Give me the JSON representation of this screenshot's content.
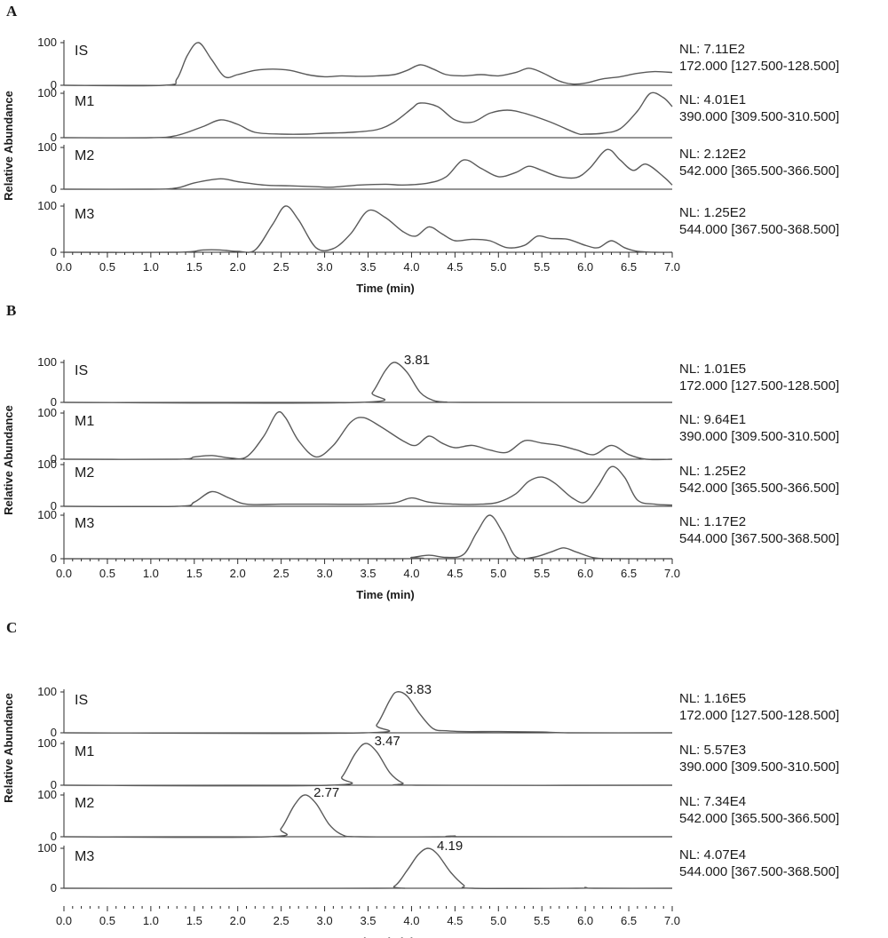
{
  "chart_data": [
    {
      "type": "line",
      "panel_label": "A",
      "xlabel": "Time (min)",
      "ylabel": "Relative Abundance",
      "xlim": [
        0,
        7
      ],
      "ylim": [
        0,
        100
      ],
      "x_ticks": [
        "0.0",
        "0.5",
        "1.0",
        "1.5",
        "2.0",
        "2.5",
        "3.0",
        "3.5",
        "4.0",
        "4.5",
        "5.0",
        "5.5",
        "6.0",
        "6.5",
        "7.0"
      ],
      "y_ticks": [
        "0",
        "100"
      ],
      "series": [
        {
          "name": "IS",
          "nl_line1": "NL: 7.11E2",
          "nl_line2": "172.000 [127.500-128.500]",
          "peak_label": "",
          "x": [
            0,
            1.15,
            1.3,
            1.42,
            1.55,
            1.7,
            1.85,
            2.0,
            2.2,
            2.4,
            2.6,
            2.8,
            3.0,
            3.2,
            3.4,
            3.6,
            3.8,
            3.95,
            4.1,
            4.25,
            4.4,
            4.6,
            4.8,
            5.0,
            5.2,
            5.35,
            5.5,
            5.7,
            5.85,
            6.0,
            6.2,
            6.4,
            6.6,
            6.8,
            7.0
          ],
          "y": [
            0,
            0,
            15,
            70,
            100,
            60,
            20,
            25,
            35,
            38,
            35,
            25,
            20,
            22,
            21,
            22,
            25,
            35,
            48,
            38,
            25,
            22,
            25,
            22,
            30,
            40,
            30,
            10,
            3,
            5,
            15,
            20,
            28,
            32,
            30
          ]
        },
        {
          "name": "M1",
          "nl_line1": "NL: 4.01E1",
          "nl_line2": "390.000 [309.500-310.500]",
          "peak_label": "",
          "x": [
            0,
            1.0,
            1.3,
            1.6,
            1.8,
            2.0,
            2.2,
            2.5,
            2.8,
            3.0,
            3.3,
            3.6,
            3.8,
            4.0,
            4.1,
            4.3,
            4.5,
            4.7,
            4.9,
            5.1,
            5.3,
            5.6,
            5.9,
            6.0,
            6.2,
            6.4,
            6.6,
            6.75,
            6.9,
            7.0
          ],
          "y": [
            0,
            0,
            5,
            25,
            40,
            30,
            12,
            8,
            8,
            10,
            12,
            18,
            35,
            65,
            78,
            70,
            40,
            35,
            55,
            62,
            55,
            35,
            10,
            8,
            10,
            20,
            60,
            100,
            90,
            70
          ]
        },
        {
          "name": "M2",
          "nl_line1": "NL: 2.12E2",
          "nl_line2": "542.000 [365.500-366.500]",
          "peak_label": "",
          "x": [
            0,
            1.0,
            1.3,
            1.5,
            1.8,
            2.0,
            2.3,
            2.6,
            2.9,
            3.1,
            3.4,
            3.7,
            3.9,
            4.2,
            4.4,
            4.6,
            4.8,
            5.0,
            5.2,
            5.35,
            5.5,
            5.7,
            5.9,
            6.05,
            6.25,
            6.4,
            6.55,
            6.7,
            6.9,
            7.0
          ],
          "y": [
            0,
            0,
            3,
            15,
            25,
            18,
            10,
            8,
            6,
            5,
            10,
            12,
            10,
            15,
            30,
            70,
            50,
            30,
            40,
            55,
            45,
            30,
            28,
            50,
            95,
            70,
            45,
            60,
            30,
            10
          ]
        },
        {
          "name": "M3",
          "nl_line1": "NL: 1.25E2",
          "nl_line2": "544.000 [367.500-368.500]",
          "peak_label": "",
          "x": [
            0,
            1.3,
            1.6,
            1.8,
            2.0,
            2.2,
            2.4,
            2.55,
            2.7,
            2.9,
            3.1,
            3.3,
            3.5,
            3.7,
            3.9,
            4.05,
            4.2,
            4.35,
            4.5,
            4.7,
            4.9,
            5.1,
            5.3,
            5.45,
            5.6,
            5.8,
            6.0,
            6.15,
            6.3,
            6.45,
            6.6,
            6.8,
            7.0
          ],
          "y": [
            0,
            0,
            5,
            5,
            2,
            5,
            60,
            100,
            70,
            10,
            8,
            40,
            90,
            75,
            45,
            35,
            55,
            40,
            25,
            28,
            25,
            10,
            15,
            35,
            30,
            28,
            15,
            10,
            25,
            10,
            2,
            0,
            0
          ]
        }
      ]
    },
    {
      "type": "line",
      "panel_label": "B",
      "xlabel": "Time (min)",
      "ylabel": "Relative Abundance",
      "xlim": [
        0,
        7
      ],
      "ylim": [
        0,
        100
      ],
      "x_ticks": [
        "0.0",
        "0.5",
        "1.0",
        "1.5",
        "2.0",
        "2.5",
        "3.0",
        "3.5",
        "4.0",
        "4.5",
        "5.0",
        "5.5",
        "6.0",
        "6.5",
        "7.0"
      ],
      "y_ticks": [
        "0",
        "100"
      ],
      "series": [
        {
          "name": "IS",
          "nl_line1": "NL: 1.01E5",
          "nl_line2": "172.000 [127.500-128.500]",
          "peak_label": "3.81",
          "peak_x": 3.81,
          "peak_y": 100,
          "x": [
            0,
            3.4,
            3.55,
            3.7,
            3.81,
            3.95,
            4.1,
            4.25,
            4.4,
            4.6,
            7.0
          ],
          "y": [
            0,
            0,
            25,
            80,
            100,
            75,
            25,
            5,
            1,
            0,
            0
          ]
        },
        {
          "name": "M1",
          "nl_line1": "NL: 9.64E1",
          "nl_line2": "390.000 [309.500-310.500]",
          "peak_label": "",
          "x": [
            0,
            1.3,
            1.5,
            1.7,
            1.9,
            2.1,
            2.3,
            2.45,
            2.55,
            2.7,
            2.9,
            3.1,
            3.3,
            3.45,
            3.65,
            3.9,
            4.05,
            4.2,
            4.35,
            4.5,
            4.7,
            4.9,
            5.1,
            5.3,
            5.5,
            5.7,
            5.9,
            6.1,
            6.3,
            6.5,
            6.7,
            7.0
          ],
          "y": [
            0,
            0,
            5,
            8,
            3,
            5,
            50,
            100,
            90,
            40,
            5,
            30,
            80,
            90,
            70,
            40,
            30,
            50,
            35,
            25,
            30,
            20,
            15,
            40,
            35,
            30,
            20,
            10,
            30,
            10,
            0,
            0
          ]
        },
        {
          "name": "M2",
          "nl_line1": "NL: 1.25E2",
          "nl_line2": "542.000 [365.500-366.500]",
          "peak_label": "",
          "x": [
            0,
            1.3,
            1.5,
            1.7,
            1.9,
            2.1,
            2.5,
            3.0,
            3.5,
            3.8,
            4.0,
            4.2,
            4.5,
            4.8,
            5.0,
            5.2,
            5.35,
            5.5,
            5.65,
            5.85,
            6.0,
            6.15,
            6.3,
            6.45,
            6.6,
            6.8,
            7.0
          ],
          "y": [
            0,
            0,
            10,
            35,
            20,
            5,
            5,
            5,
            5,
            8,
            20,
            10,
            5,
            5,
            10,
            30,
            60,
            70,
            55,
            20,
            10,
            50,
            95,
            70,
            15,
            5,
            3
          ]
        },
        {
          "name": "M3",
          "nl_line1": "NL: 1.17E2",
          "nl_line2": "544.000 [367.500-368.500]",
          "peak_label": "",
          "x": [
            0,
            3.8,
            4.0,
            4.2,
            4.4,
            4.6,
            4.75,
            4.9,
            5.05,
            5.2,
            5.4,
            5.6,
            5.75,
            5.9,
            6.1,
            6.3,
            7.0
          ],
          "y": [
            0,
            0,
            3,
            8,
            3,
            10,
            60,
            100,
            60,
            5,
            3,
            15,
            25,
            15,
            2,
            0,
            0
          ]
        }
      ]
    },
    {
      "type": "line",
      "panel_label": "C",
      "xlabel": "Time (min)",
      "ylabel": "Relative Abundance",
      "xlim": [
        0,
        7
      ],
      "ylim": [
        0,
        100
      ],
      "x_ticks": [
        "0.0",
        "0.5",
        "1.0",
        "1.5",
        "2.0",
        "2.5",
        "3.0",
        "3.5",
        "4.0",
        "4.5",
        "5.0",
        "5.5",
        "6.0",
        "6.5",
        "7.0"
      ],
      "y_ticks": [
        "0",
        "100"
      ],
      "series": [
        {
          "name": "IS",
          "nl_line1": "NL: 1.16E5",
          "nl_line2": "172.000 [127.500-128.500]",
          "peak_label": "3.83",
          "peak_x": 3.83,
          "peak_y": 100,
          "x": [
            0,
            3.45,
            3.6,
            3.75,
            3.83,
            3.95,
            4.1,
            4.25,
            4.4,
            4.6,
            5.0,
            5.5,
            5.8,
            7.0
          ],
          "y": [
            0,
            0,
            20,
            80,
            100,
            90,
            45,
            10,
            5,
            3,
            3,
            2,
            0,
            0
          ]
        },
        {
          "name": "M1",
          "nl_line1": "NL: 5.57E3",
          "nl_line2": "390.000 [309.500-310.500]",
          "peak_label": "3.47",
          "peak_x": 3.47,
          "peak_y": 100,
          "x": [
            0,
            3.05,
            3.2,
            3.35,
            3.47,
            3.6,
            3.75,
            3.9,
            4.05,
            7.0
          ],
          "y": [
            0,
            0,
            20,
            75,
            100,
            80,
            30,
            5,
            0,
            0
          ]
        },
        {
          "name": "M2",
          "nl_line1": "NL: 7.34E4",
          "nl_line2": "542.000 [365.500-366.500]",
          "peak_label": "2.77",
          "peak_x": 2.77,
          "peak_y": 100,
          "x": [
            0,
            2.35,
            2.5,
            2.65,
            2.77,
            2.9,
            3.05,
            3.2,
            3.4,
            4.4,
            4.5,
            4.6,
            7.0
          ],
          "y": [
            0,
            0,
            20,
            75,
            100,
            80,
            30,
            5,
            0,
            0,
            2,
            0,
            0
          ]
        },
        {
          "name": "M3",
          "nl_line1": "NL: 4.07E4",
          "nl_line2": "544.000 [367.500-368.500]",
          "peak_label": "4.19",
          "peak_x": 4.19,
          "peak_y": 100,
          "x": [
            0,
            3.6,
            3.8,
            3.95,
            4.08,
            4.19,
            4.3,
            4.45,
            4.6,
            4.7,
            5.9,
            6.0,
            6.1,
            7.0
          ],
          "y": [
            0,
            0,
            5,
            45,
            85,
            100,
            85,
            40,
            8,
            0,
            0,
            2,
            0,
            0
          ]
        }
      ]
    }
  ]
}
